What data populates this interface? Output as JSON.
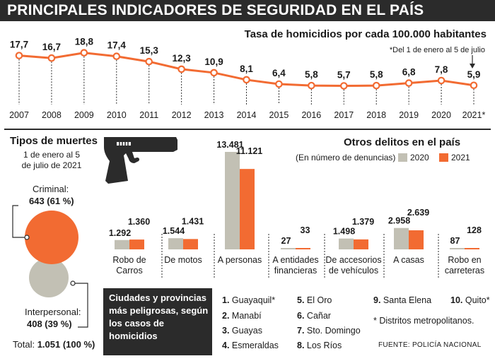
{
  "title": "PRINCIPALES INDICADORES DE SEGURIDAD EN EL PAÍS",
  "colors": {
    "orange": "#f26b32",
    "gray": "#c2c0b4",
    "dark": "#2b2b2b"
  },
  "chart_data": [
    {
      "type": "line",
      "title": "Tasa de homicidios por cada 100.000 habitantes",
      "note": "*Del 1 de enero al 5 de julio",
      "x": [
        "2007",
        "2008",
        "2009",
        "2010",
        "2011",
        "2012",
        "2013",
        "2014",
        "2015",
        "2016",
        "2017",
        "2018",
        "2019",
        "2020",
        "2021*"
      ],
      "labels": [
        "17,7",
        "16,7",
        "18,8",
        "17,4",
        "15,3",
        "12,3",
        "10,9",
        "8,1",
        "6,4",
        "5,8",
        "5,7",
        "5,8",
        "6,8",
        "7,8",
        "5,9"
      ],
      "values": [
        17.7,
        16.7,
        18.8,
        17.4,
        15.3,
        12.3,
        10.9,
        8.1,
        6.4,
        5.8,
        5.7,
        5.8,
        6.8,
        7.8,
        5.9
      ],
      "ylim": [
        5,
        19
      ]
    },
    {
      "type": "bar",
      "title": "Otros delitos en el país",
      "subtitle": "(En número de denuncias)",
      "categories": [
        "Robo de Carros",
        "De motos",
        "A personas",
        "A entidades financieras",
        "De accesorios de vehículos",
        "A casas",
        "Robo en carreteras"
      ],
      "category_lines": [
        [
          "Robo de",
          "Carros"
        ],
        [
          "De motos"
        ],
        [
          "A personas"
        ],
        [
          "A entidades",
          "financieras"
        ],
        [
          "De accesorios",
          "de vehículos"
        ],
        [
          "A casas"
        ],
        [
          "Robo en",
          "carreteras"
        ]
      ],
      "series": [
        {
          "name": "2020",
          "values": [
            1292,
            1544,
            13481,
            27,
            1498,
            2958,
            87
          ],
          "labels": [
            "1.292",
            "1.544",
            "13.481",
            "27",
            "1.498",
            "2.958",
            "87"
          ]
        },
        {
          "name": "2021",
          "values": [
            1360,
            1431,
            11121,
            33,
            1379,
            2639,
            128
          ],
          "labels": [
            "1.360",
            "1.431",
            "11.121",
            "33",
            "1.379",
            "2.639",
            "128"
          ]
        }
      ]
    },
    {
      "type": "pie",
      "title": "Tipos de muertes",
      "subtitle": "1 de enero al 5 de julio de 2021",
      "slices": [
        {
          "name": "Criminal:",
          "value": 643,
          "label": "643 (61 %)"
        },
        {
          "name": "Interpersonal:",
          "value": 408,
          "label": "408 (39 %)"
        }
      ],
      "total_label": "Total:",
      "total_value": "1.051 (100 %)"
    }
  ],
  "cities": {
    "heading": "Ciudades y provincias más peligrosas, según los casos de homicidios",
    "items": [
      {
        "n": "1.",
        "name": "Guayaquil*"
      },
      {
        "n": "2.",
        "name": "Manabí"
      },
      {
        "n": "3.",
        "name": "Guayas"
      },
      {
        "n": "4.",
        "name": "Esmeraldas"
      },
      {
        "n": "5.",
        "name": "El Oro"
      },
      {
        "n": "6.",
        "name": "Cañar"
      },
      {
        "n": "7.",
        "name": "Sto. Domingo"
      },
      {
        "n": "8.",
        "name": "Los Ríos"
      },
      {
        "n": "9.",
        "name": "Santa Elena"
      },
      {
        "n": "10.",
        "name": "Quito*"
      }
    ],
    "footnote": "* Distritos metropolitanos.",
    "source": "FUENTE: POLICÍA NACIONAL"
  }
}
